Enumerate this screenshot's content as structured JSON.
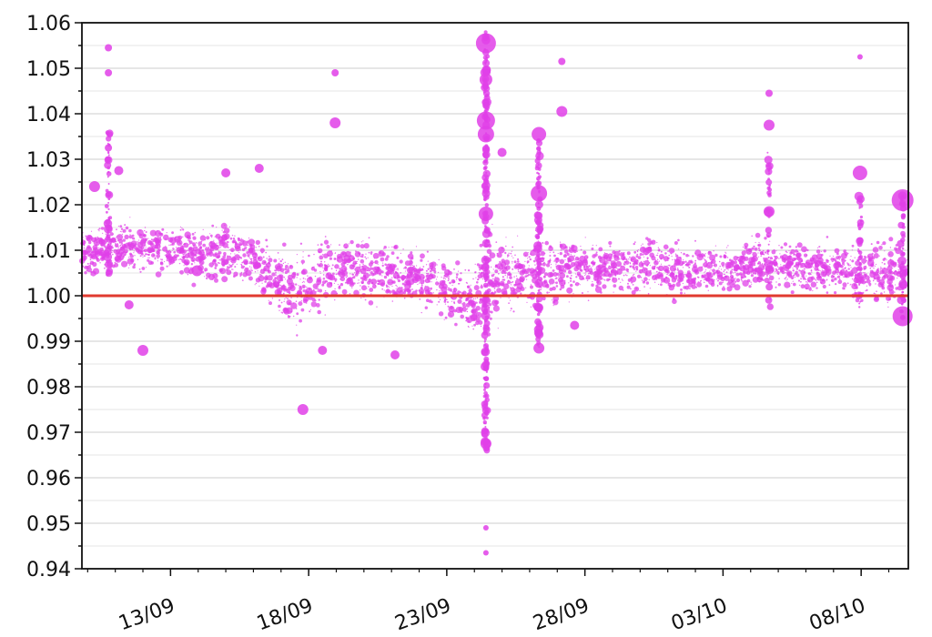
{
  "chart_data": {
    "type": "scatter",
    "title": "",
    "xlabel": "",
    "ylabel": "",
    "x_ticks": [
      "13/09",
      "18/09",
      "23/09",
      "28/09",
      "03/10",
      "08/10"
    ],
    "x_tick_dates": [
      "2023-09-13",
      "2023-09-18",
      "2023-09-23",
      "2023-09-28",
      "2023-10-03",
      "2023-10-08"
    ],
    "xlim": [
      "2023-09-09T19:00",
      "2023-10-09T17:00"
    ],
    "y_ticks": [
      "1.06",
      "1.05",
      "1.04",
      "1.03",
      "1.02",
      "1.01",
      "1.00",
      "0.99",
      "0.98",
      "0.97",
      "0.96",
      "0.95",
      "0.94"
    ],
    "ylim": [
      0.94,
      1.06
    ],
    "grid": true,
    "reference_line": {
      "y": 1.0,
      "color": "#e03a2f"
    },
    "point_color": "#e040e8",
    "series": [
      {
        "points": [
          {
            "x": "2023-09-10T18:00",
            "y": 1.0545,
            "size": 4
          },
          {
            "x": "2023-09-10T18:00",
            "y": 1.049,
            "size": 4
          },
          {
            "x": "2023-09-10T18:00",
            "y": 1.0325,
            "size": 4
          },
          {
            "x": "2023-09-10T06:00",
            "y": 1.024,
            "size": 6
          },
          {
            "x": "2023-09-11T03:00",
            "y": 1.0275,
            "size": 5
          },
          {
            "x": "2023-09-11T12:00",
            "y": 0.998,
            "size": 5
          },
          {
            "x": "2023-09-12T00:00",
            "y": 0.988,
            "size": 6
          },
          {
            "x": "2023-09-13T23:00",
            "y": 1.0055,
            "size": 6
          },
          {
            "x": "2023-09-15T00:00",
            "y": 1.027,
            "size": 5
          },
          {
            "x": "2023-09-16T05:00",
            "y": 1.028,
            "size": 5
          },
          {
            "x": "2023-09-17T19:00",
            "y": 0.975,
            "size": 6
          },
          {
            "x": "2023-09-18T12:00",
            "y": 0.988,
            "size": 5
          },
          {
            "x": "2023-09-18T23:00",
            "y": 1.049,
            "size": 4
          },
          {
            "x": "2023-09-18T23:00",
            "y": 1.038,
            "size": 6
          },
          {
            "x": "2023-09-21T03:00",
            "y": 0.987,
            "size": 5
          },
          {
            "x": "2023-09-24T10:00",
            "y": 1.0555,
            "size": 11
          },
          {
            "x": "2023-09-24T10:00",
            "y": 1.0475,
            "size": 7
          },
          {
            "x": "2023-09-24T10:00",
            "y": 1.0385,
            "size": 10
          },
          {
            "x": "2023-09-24T10:00",
            "y": 1.0355,
            "size": 9
          },
          {
            "x": "2023-09-24T10:00",
            "y": 1.018,
            "size": 8
          },
          {
            "x": "2023-09-24T10:00",
            "y": 0.9675,
            "size": 6
          },
          {
            "x": "2023-09-24T10:00",
            "y": 0.949,
            "size": 3
          },
          {
            "x": "2023-09-24T10:00",
            "y": 0.9435,
            "size": 3
          },
          {
            "x": "2023-09-25T00:00",
            "y": 1.0315,
            "size": 5
          },
          {
            "x": "2023-09-26T08:00",
            "y": 1.0355,
            "size": 8
          },
          {
            "x": "2023-09-26T08:00",
            "y": 1.0225,
            "size": 9
          },
          {
            "x": "2023-09-26T08:00",
            "y": 0.9885,
            "size": 6
          },
          {
            "x": "2023-09-27T04:00",
            "y": 1.0405,
            "size": 6
          },
          {
            "x": "2023-09-27T04:00",
            "y": 1.0515,
            "size": 4
          },
          {
            "x": "2023-09-27T15:00",
            "y": 0.9935,
            "size": 5
          },
          {
            "x": "2023-10-04T16:00",
            "y": 1.0445,
            "size": 4
          },
          {
            "x": "2023-10-04T16:00",
            "y": 1.0375,
            "size": 6
          },
          {
            "x": "2023-10-04T16:00",
            "y": 1.0185,
            "size": 6
          },
          {
            "x": "2023-10-07T23:00",
            "y": 1.0525,
            "size": 3
          },
          {
            "x": "2023-10-07T23:00",
            "y": 1.027,
            "size": 8
          },
          {
            "x": "2023-10-09T12:00",
            "y": 1.021,
            "size": 12
          },
          {
            "x": "2023-10-09T12:00",
            "y": 0.9955,
            "size": 11
          }
        ],
        "dense_band": [
          {
            "x": "2023-09-10T00:00",
            "center": 1.01,
            "spread": 0.005
          },
          {
            "x": "2023-09-11T00:00",
            "center": 1.011,
            "spread": 0.005
          },
          {
            "x": "2023-09-12T00:00",
            "center": 1.01,
            "spread": 0.005
          },
          {
            "x": "2023-09-13T00:00",
            "center": 1.01,
            "spread": 0.005
          },
          {
            "x": "2023-09-14T00:00",
            "center": 1.009,
            "spread": 0.006
          },
          {
            "x": "2023-09-15T00:00",
            "center": 1.01,
            "spread": 0.006
          },
          {
            "x": "2023-09-16T00:00",
            "center": 1.008,
            "spread": 0.006
          },
          {
            "x": "2023-09-17T00:00",
            "center": 1.003,
            "spread": 0.007
          },
          {
            "x": "2023-09-17T12:00",
            "center": 1.0,
            "spread": 0.008
          },
          {
            "x": "2023-09-18T00:00",
            "center": 1.002,
            "spread": 0.008
          },
          {
            "x": "2023-09-19T00:00",
            "center": 1.006,
            "spread": 0.007
          },
          {
            "x": "2023-09-20T00:00",
            "center": 1.006,
            "spread": 0.006
          },
          {
            "x": "2023-09-21T00:00",
            "center": 1.005,
            "spread": 0.006
          },
          {
            "x": "2023-09-22T00:00",
            "center": 1.004,
            "spread": 0.005
          },
          {
            "x": "2023-09-23T00:00",
            "center": 1.001,
            "spread": 0.006
          },
          {
            "x": "2023-09-24T00:00",
            "center": 0.999,
            "spread": 0.007
          },
          {
            "x": "2023-09-24T10:00",
            "center": 1.003,
            "spread": 0.015
          },
          {
            "x": "2023-09-25T00:00",
            "center": 1.004,
            "spread": 0.007
          },
          {
            "x": "2023-09-26T00:00",
            "center": 1.005,
            "spread": 0.008
          },
          {
            "x": "2023-09-27T00:00",
            "center": 1.006,
            "spread": 0.007
          },
          {
            "x": "2023-09-28T00:00",
            "center": 1.006,
            "spread": 0.005
          },
          {
            "x": "2023-09-29T00:00",
            "center": 1.006,
            "spread": 0.005
          },
          {
            "x": "2023-09-30T00:00",
            "center": 1.007,
            "spread": 0.006
          },
          {
            "x": "2023-10-01T00:00",
            "center": 1.006,
            "spread": 0.006
          },
          {
            "x": "2023-10-02T00:00",
            "center": 1.005,
            "spread": 0.005
          },
          {
            "x": "2023-10-03T00:00",
            "center": 1.006,
            "spread": 0.005
          },
          {
            "x": "2023-10-04T00:00",
            "center": 1.007,
            "spread": 0.005
          },
          {
            "x": "2023-10-05T00:00",
            "center": 1.007,
            "spread": 0.005
          },
          {
            "x": "2023-10-06T00:00",
            "center": 1.006,
            "spread": 0.005
          },
          {
            "x": "2023-10-07T00:00",
            "center": 1.006,
            "spread": 0.005
          },
          {
            "x": "2023-10-08T00:00",
            "center": 1.005,
            "spread": 0.006
          },
          {
            "x": "2023-10-09T00:00",
            "center": 1.005,
            "spread": 0.007
          }
        ]
      }
    ]
  }
}
